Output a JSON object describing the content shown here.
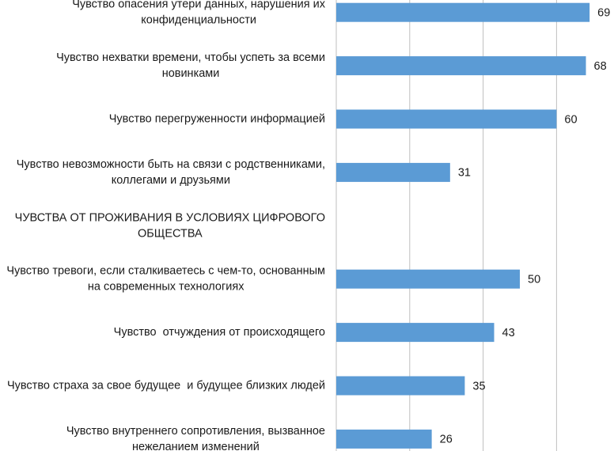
{
  "chart_data": {
    "type": "barh",
    "categories": [
      "Чувство опасения утери данных, нарушения их конфиденциальности",
      "Чувство нехватки времени, чтобы успеть за всеми новинками",
      "Чувство перегруженности информацией",
      "Чувство невозможности быть на связи с родственниками, коллегами и друзьями",
      "ЧУВСТВА ОТ ПРОЖИВАНИЯ В УСЛОВИЯХ ЦИФРОВОГО ОБЩЕСТВА",
      "Чувство тревоги, если сталкиваетесь с чем-то, основанным на современных технологиях",
      "Чувство  отчуждения от происходящего",
      "Чувство страха за свое будущее  и будущее близких людей",
      "Чувство внутреннего сопротивления, вызванное нежеланием изменений"
    ],
    "values": [
      69,
      68,
      60,
      31,
      null,
      50,
      43,
      35,
      26
    ],
    "color": "#5b9bd5",
    "xlim": [
      0,
      75
    ],
    "xticks": [
      0,
      20,
      40,
      60
    ],
    "grid": true
  }
}
